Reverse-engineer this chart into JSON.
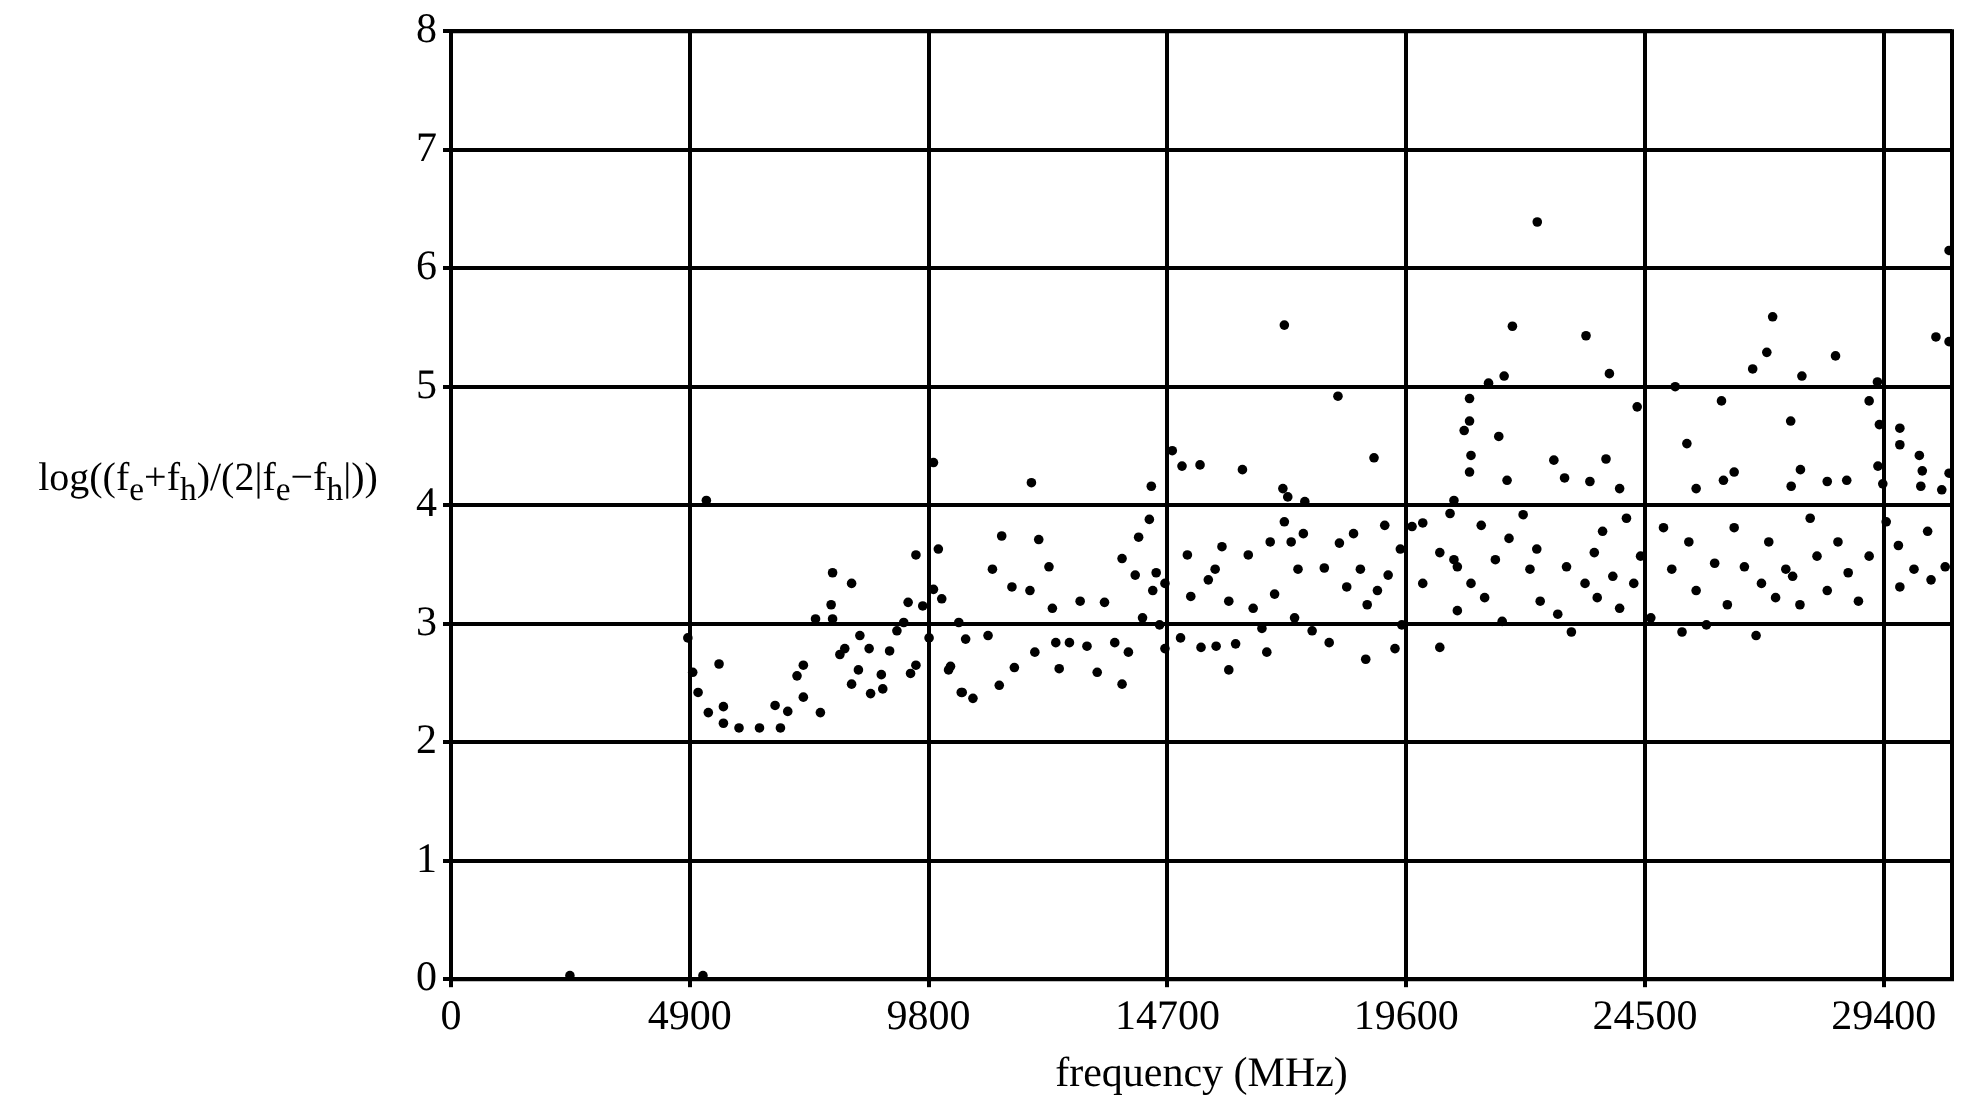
{
  "chart_data": {
    "type": "scatter",
    "xlabel": "frequency (MHz)",
    "ylabel": "log((f$_{e}$+f$_{h}$)/(2|f$_{e}$−f$_{h}$|))",
    "xlim": [
      0,
      30800
    ],
    "ylim": [
      0,
      8
    ],
    "xticks": [
      0,
      4900,
      9800,
      14700,
      19600,
      24500,
      29400
    ],
    "yticks": [
      0,
      1,
      2,
      3,
      4,
      5,
      6,
      7,
      8
    ],
    "grid": true,
    "marker": "circle",
    "legend": false,
    "series": [
      {
        "color": "#000000",
        "x": [
          2440,
          5170,
          5240,
          4860,
          4960,
          5070,
          5280,
          5590,
          5590,
          5910,
          6330,
          6760,
          6650,
          6910,
          5500,
          7100,
          7230,
          7230,
          7580,
          7480,
          7830,
          8220,
          7800,
          7830,
          7980,
          8080,
          8220,
          8390,
          8360,
          8580,
          8610,
          8830,
          8860,
          9000,
          9150,
          9290,
          9380,
          9430,
          9540,
          9680,
          9900,
          10000,
          9900,
          10070,
          9810,
          9540,
          10210,
          10420,
          10470,
          10250,
          10490,
          10710,
          10560,
          11110,
          11300,
          11510,
          11910,
          11880,
          12060,
          12270,
          12340,
          11020,
          11560,
          11250,
          11980,
          12410,
          12690,
          12480,
          12910,
          13050,
          13260,
          13410,
          13620,
          13770,
          13770,
          13900,
          14040,
          14190,
          14110,
          14330,
          14370,
          14400,
          14470,
          14540,
          14650,
          14650,
          14800,
          15000,
          15370,
          16240,
          14970,
          15110,
          15180,
          15390,
          15540,
          15680,
          15820,
          15700,
          15960,
          15960,
          16100,
          16360,
          16460,
          16640,
          16740,
          16810,
          16900,
          17100,
          17070,
          17170,
          17520,
          17100,
          17240,
          17380,
          17490,
          17310,
          17670,
          17920,
          18020,
          18200,
          18230,
          18380,
          18520,
          18660,
          18770,
          18800,
          18940,
          19010,
          19160,
          19230,
          19370,
          19480,
          19510,
          19720,
          19940,
          19940,
          20290,
          20290,
          20580,
          20650,
          20790,
          22290,
          21780,
          23290,
          23770,
          21610,
          21290,
          20900,
          20900,
          21500,
          20930,
          20900,
          21670,
          22630,
          22850,
          23700,
          23370,
          24340,
          23980,
          25120,
          25360,
          26070,
          26330,
          26710,
          27000,
          27120,
          27720,
          28410,
          27490,
          27690,
          28640,
          29100,
          29270,
          29310,
          29730,
          29730,
          29280,
          29380,
          30130,
          30190,
          30160,
          30590,
          30740,
          30740,
          30470,
          30740,
          25550,
          26110,
          27500,
          28240,
          20500,
          20580,
          20650,
          20930,
          21140,
          21210,
          21430,
          21570,
          21710,
          22000,
          22140,
          22280,
          22350,
          22710,
          22990,
          22890,
          23270,
          23460,
          23630,
          23520,
          23840,
          23980,
          24120,
          24270,
          24410,
          24620,
          24880,
          25050,
          25260,
          25400,
          25550,
          25760,
          25930,
          26190,
          26330,
          26540,
          26780,
          26890,
          27040,
          27180,
          27390,
          27530,
          27680,
          27890,
          28030,
          28240,
          28460,
          28670,
          28880,
          29100,
          29450,
          29700,
          29730,
          30020,
          30300,
          30370,
          30660
        ],
        "values": [
          0.03,
          0.03,
          4.04,
          2.88,
          2.59,
          2.42,
          2.25,
          2.3,
          2.16,
          2.12,
          2.12,
          2.12,
          2.31,
          2.26,
          2.66,
          2.56,
          2.65,
          2.38,
          2.25,
          3.04,
          3.43,
          3.34,
          3.16,
          3.04,
          2.74,
          2.79,
          2.49,
          2.9,
          2.61,
          2.79,
          2.41,
          2.57,
          2.45,
          2.77,
          2.94,
          3.01,
          3.18,
          2.58,
          3.58,
          3.15,
          4.36,
          3.63,
          3.29,
          3.21,
          2.88,
          2.65,
          2.61,
          3.01,
          2.42,
          2.64,
          2.42,
          2.37,
          2.87,
          3.46,
          3.74,
          3.31,
          4.19,
          3.28,
          3.71,
          3.48,
          3.13,
          2.9,
          2.63,
          2.48,
          2.76,
          2.84,
          2.84,
          2.62,
          3.19,
          2.81,
          2.59,
          3.18,
          2.84,
          2.49,
          3.55,
          2.76,
          3.41,
          3.05,
          3.73,
          3.88,
          4.16,
          3.28,
          3.43,
          2.99,
          3.34,
          2.79,
          4.46,
          4.33,
          4.34,
          4.3,
          2.88,
          3.58,
          3.23,
          2.8,
          3.37,
          3.46,
          3.65,
          2.81,
          2.61,
          3.19,
          2.83,
          3.58,
          3.13,
          2.96,
          2.76,
          3.69,
          3.25,
          5.52,
          4.14,
          4.07,
          4.03,
          3.86,
          3.69,
          3.46,
          3.76,
          3.05,
          2.94,
          3.47,
          2.84,
          4.92,
          3.68,
          3.31,
          3.76,
          3.46,
          2.7,
          3.16,
          4.4,
          3.28,
          3.83,
          3.41,
          2.79,
          3.63,
          2.99,
          3.82,
          3.85,
          3.34,
          3.6,
          2.8,
          4.04,
          3.48,
          4.63,
          6.39,
          5.51,
          5.43,
          5.11,
          5.09,
          5.03,
          4.9,
          4.71,
          4.58,
          4.42,
          4.28,
          4.21,
          4.38,
          4.23,
          4.39,
          4.2,
          4.83,
          4.14,
          5.0,
          4.52,
          4.88,
          4.28,
          5.15,
          5.29,
          5.59,
          5.09,
          5.26,
          4.71,
          4.3,
          4.21,
          4.88,
          5.04,
          4.68,
          4.65,
          4.51,
          4.33,
          4.18,
          4.42,
          4.29,
          4.16,
          4.13,
          4.27,
          6.15,
          5.42,
          5.38,
          4.14,
          4.21,
          4.16,
          4.2,
          3.93,
          3.54,
          3.11,
          3.34,
          3.83,
          3.22,
          3.54,
          3.02,
          3.72,
          3.92,
          3.46,
          3.63,
          3.19,
          3.08,
          2.93,
          3.48,
          3.34,
          3.6,
          3.78,
          3.22,
          3.4,
          3.13,
          3.89,
          3.34,
          3.57,
          3.05,
          3.81,
          3.46,
          2.93,
          3.69,
          3.28,
          2.99,
          3.51,
          3.16,
          3.81,
          3.48,
          2.9,
          3.34,
          3.69,
          3.22,
          3.46,
          3.4,
          3.16,
          3.89,
          3.57,
          3.28,
          3.69,
          3.43,
          3.19,
          3.57,
          3.86,
          3.66,
          3.31,
          3.46,
          3.78,
          3.37,
          3.48
        ]
      }
    ]
  }
}
